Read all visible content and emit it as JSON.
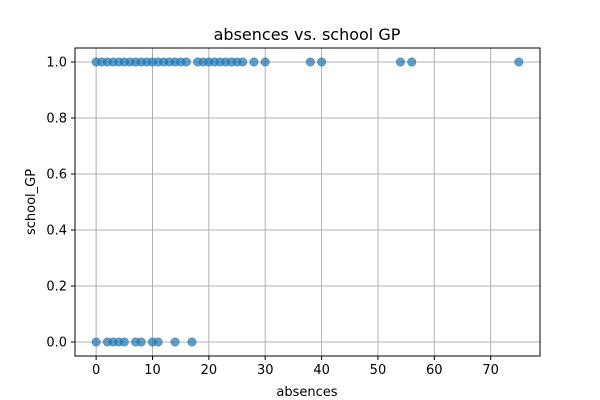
{
  "chart_data": {
    "type": "scatter",
    "title": "absences vs. school GP",
    "xlabel": "absences",
    "ylabel": "school_GP",
    "xlim": [
      -3.75,
      78.75
    ],
    "ylim": [
      -0.05,
      1.05
    ],
    "x_ticks": [
      0,
      10,
      20,
      30,
      40,
      50,
      60,
      70
    ],
    "y_ticks": [
      "0.0",
      "0.2",
      "0.4",
      "0.6",
      "0.8",
      "1.0"
    ],
    "grid": true,
    "colors": {
      "marker": "#1f77b4",
      "marker_alpha": 0.7
    },
    "series": [
      {
        "points": [
          [
            0,
            1
          ],
          [
            1,
            1
          ],
          [
            2,
            1
          ],
          [
            3,
            1
          ],
          [
            4,
            1
          ],
          [
            5,
            1
          ],
          [
            6,
            1
          ],
          [
            7,
            1
          ],
          [
            8,
            1
          ],
          [
            9,
            1
          ],
          [
            10,
            1
          ],
          [
            11,
            1
          ],
          [
            12,
            1
          ],
          [
            13,
            1
          ],
          [
            14,
            1
          ],
          [
            15,
            1
          ],
          [
            16,
            1
          ],
          [
            18,
            1
          ],
          [
            19,
            1
          ],
          [
            20,
            1
          ],
          [
            21,
            1
          ],
          [
            22,
            1
          ],
          [
            23,
            1
          ],
          [
            24,
            1
          ],
          [
            25,
            1
          ],
          [
            26,
            1
          ],
          [
            28,
            1
          ],
          [
            30,
            1
          ],
          [
            38,
            1
          ],
          [
            40,
            1
          ],
          [
            54,
            1
          ],
          [
            56,
            1
          ],
          [
            75,
            1
          ],
          [
            0,
            0
          ],
          [
            2,
            0
          ],
          [
            3,
            0
          ],
          [
            4,
            0
          ],
          [
            5,
            0
          ],
          [
            7,
            0
          ],
          [
            8,
            0
          ],
          [
            10,
            0
          ],
          [
            11,
            0
          ],
          [
            14,
            0
          ],
          [
            17,
            0
          ]
        ]
      }
    ]
  }
}
